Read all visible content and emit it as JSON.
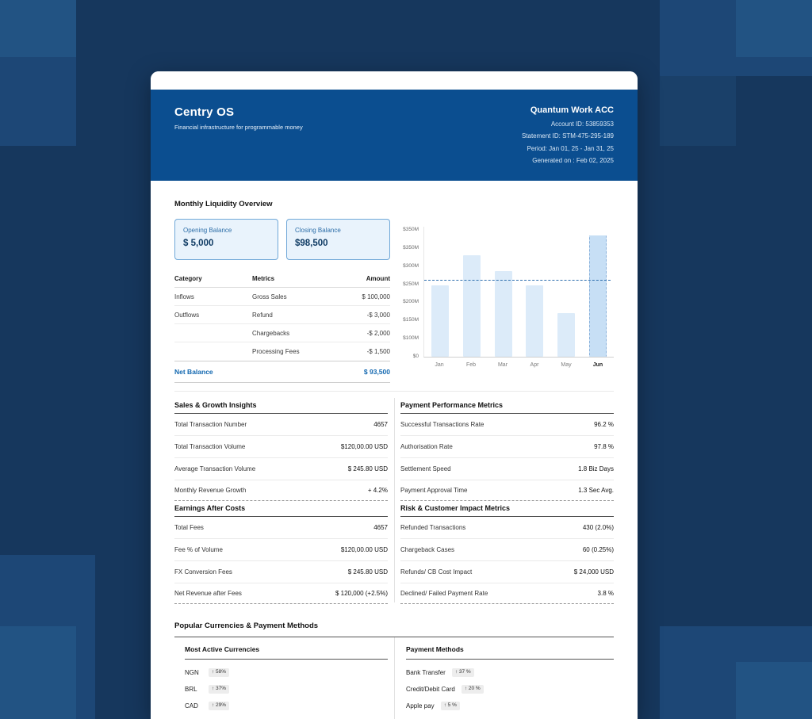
{
  "colors": {
    "page-bg": "#16375d",
    "header-blue": "#0b4e90",
    "accent-blue": "#1368b0",
    "box-bg": "#e9f3fc",
    "box-border": "#70a8d8",
    "bar": "#dcebf9",
    "bar-hl": "#c7dff5"
  },
  "header": {
    "brand": "Centry OS",
    "tagline": "Financial infrastructure for programmable money",
    "account_name": "Quantum Work ACC",
    "account_id": "Account ID: 53859353",
    "statement_id": "Statement ID: STM-475-295-189",
    "period": "Period: Jan 01, 25 - Jan 31, 25",
    "generated": "Generated on : Feb 02, 2025"
  },
  "liquidity": {
    "title": "Monthly Liquidity Overview",
    "opening": {
      "label": "Opening Balance",
      "value": "$ 5,000"
    },
    "closing": {
      "label": "Closing Balance",
      "value": "$98,500"
    },
    "table": {
      "headers": [
        "Category",
        "Metrics",
        "Amount"
      ],
      "rows": [
        {
          "category": "Inflows",
          "metric": "Gross Sales",
          "amount": "$ 100,000"
        },
        {
          "category": "Outflows",
          "metric": "Refund",
          "amount": "-$ 3,000"
        },
        {
          "category": "",
          "metric": "Chargebacks",
          "amount": "-$ 2,000"
        },
        {
          "category": "",
          "metric": "Processing Fees",
          "amount": "-$ 1,500"
        }
      ],
      "net": {
        "label": "Net Balance",
        "amount": "$ 93,500"
      }
    }
  },
  "chart_data": {
    "type": "bar",
    "title": "Monthly Liquidity Overview",
    "categories": [
      "Jan",
      "Feb",
      "Mar",
      "Apr",
      "May",
      "Jun"
    ],
    "values": [
      230,
      325,
      275,
      230,
      140,
      390
    ],
    "unit": "$M",
    "ylim": [
      0,
      420
    ],
    "ytick_labels": [
      "$350M",
      "$350M",
      "$300M",
      "$250M",
      "$200M",
      "$150M",
      "$100M",
      "$0"
    ],
    "baseline_value": 245,
    "highlight_index": 5,
    "grid": false,
    "legend": false
  },
  "panels": [
    {
      "title": "Sales & Growth Insights",
      "rows": [
        [
          "Total Transaction Number",
          "4657"
        ],
        [
          "Total Transaction Volume",
          "$120,00.00 USD"
        ],
        [
          "Average Transaction Volume",
          "$ 245.80 USD"
        ],
        [
          "Monthly Revenue Growth",
          "+ 4.2%"
        ]
      ]
    },
    {
      "title": "Payment Performance Metrics",
      "rows": [
        [
          "Successful Transactions Rate",
          "96.2 %"
        ],
        [
          "Authorisation Rate",
          "97.8 %"
        ],
        [
          "Settlement Speed",
          "1.8 Biz Days"
        ],
        [
          "Payment Approval Time",
          "1.3 Sec Avg."
        ]
      ]
    },
    {
      "title": "Earnings After Costs",
      "rows": [
        [
          "Total Fees",
          "4657"
        ],
        [
          "Fee % of Volume",
          "$120,00.00 USD"
        ],
        [
          "FX Conversion Fees",
          "$ 245.80 USD"
        ],
        [
          "Net Revenue after Fees",
          "$ 120,000 (+2.5%)"
        ]
      ]
    },
    {
      "title": "Risk & Customer Impact Metrics",
      "rows": [
        [
          "Refunded Transactions",
          "430 (2.0%)"
        ],
        [
          "Chargeback Cases",
          "60 (0.25%)"
        ],
        [
          "Refunds/ CB Cost Impact",
          "$ 24,000 USD"
        ],
        [
          "Declined/ Failed Payment Rate",
          "3.8 %"
        ]
      ]
    }
  ],
  "popular": {
    "title": "Popular Currencies & Payment Methods",
    "currencies": {
      "title": "Most Active Currencies",
      "items": [
        {
          "code": "NGN",
          "change": "↑ 58%"
        },
        {
          "code": "BRL",
          "change": "↑ 37%"
        },
        {
          "code": "CAD",
          "change": "↑ 29%"
        }
      ]
    },
    "methods": {
      "title": "Payment Methods",
      "items": [
        {
          "name": "Bank Transfer",
          "change": "↑ 37 %"
        },
        {
          "name": "Credit/Debit Card",
          "change": "↑ 20 %"
        },
        {
          "name": "Apple pay",
          "change": "↑ 5 %"
        }
      ]
    }
  }
}
